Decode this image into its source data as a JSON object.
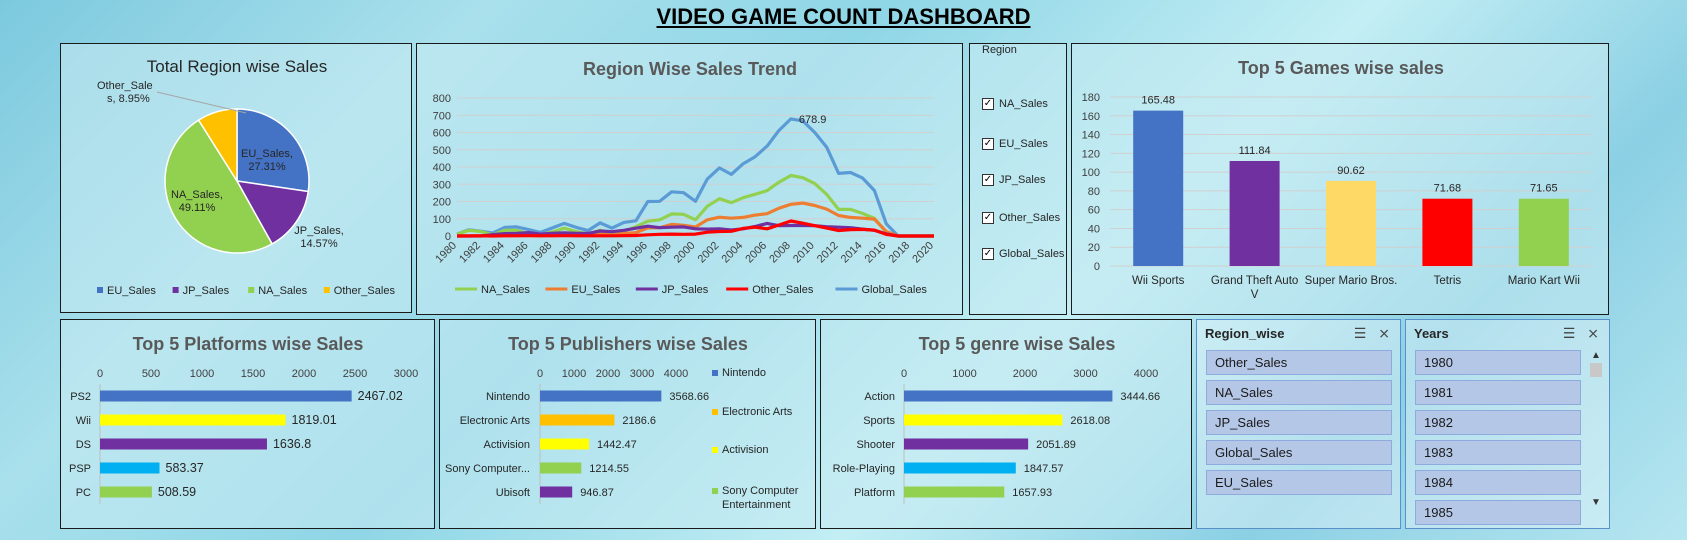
{
  "dashboard": {
    "title": "VIDEO GAME COUNT  DASHBOARD"
  },
  "colors": {
    "EU_Sales": "#4472c4",
    "JP_Sales": "#7030a0",
    "NA_Sales": "#92d050",
    "Other_Sales": "#ffc000",
    "Global_Sales": "#5b9bd5",
    "trend_NA": "#92d050",
    "trend_EU": "#ed7d31",
    "trend_JP": "#7030a0",
    "trend_Other": "#ff0000",
    "trend_Global": "#5b9bd5"
  },
  "region_filter": {
    "title": "Region",
    "items": [
      {
        "label": "NA_Sales",
        "checked": "✓"
      },
      {
        "label": "EU_Sales",
        "checked": "✓"
      },
      {
        "label": "JP_Sales",
        "checked": "✓"
      },
      {
        "label": "Other_Sales",
        "checked": "✓"
      },
      {
        "label": "Global_Sales",
        "checked": "✓"
      }
    ]
  },
  "slicer_region": {
    "title": "Region_wise",
    "items": [
      "Other_Sales",
      "NA_Sales",
      "JP_Sales",
      "Global_Sales",
      "EU_Sales"
    ]
  },
  "slicer_years": {
    "title": "Years",
    "items": [
      "1980",
      "1981",
      "1982",
      "1983",
      "1984",
      "1985"
    ]
  },
  "chart_data": [
    {
      "id": "pie",
      "type": "pie",
      "title": "Total  Region wise Sales",
      "slices": [
        {
          "name": "EU_Sales",
          "value": 27.31,
          "label": "EU_Sales,",
          "pct": "27.31%"
        },
        {
          "name": "JP_Sales",
          "value": 14.57,
          "label": "JP_Sales,",
          "pct": "14.57%"
        },
        {
          "name": "NA_Sales",
          "value": 49.11,
          "label": "NA_Sales,",
          "pct": "49.11%"
        },
        {
          "name": "Other_Sales",
          "value": 8.95,
          "label": "Other_Sale",
          "pct": "s, 8.95%"
        }
      ],
      "legend": [
        "EU_Sales",
        "JP_Sales",
        "NA_Sales",
        "Other_Sales"
      ],
      "legend_position": "bottom"
    },
    {
      "id": "trend",
      "type": "line",
      "title": "Region Wise Sales Trend",
      "x": [
        1980,
        1981,
        1982,
        1983,
        1984,
        1985,
        1986,
        1987,
        1988,
        1989,
        1990,
        1991,
        1992,
        1993,
        1994,
        1995,
        1996,
        1997,
        1998,
        1999,
        2000,
        2001,
        2002,
        2003,
        2004,
        2005,
        2006,
        2007,
        2008,
        2009,
        2010,
        2011,
        2012,
        2013,
        2014,
        2015,
        2016,
        2017,
        2020
      ],
      "x_ticks": [
        "1980",
        "1982",
        "1984",
        "1986",
        "1988",
        "1990",
        "1992",
        "1994",
        "1996",
        "1998",
        "2000",
        "2002",
        "2004",
        "2006",
        "2008",
        "2010",
        "2012",
        "2014",
        "2016",
        "2018",
        "2020"
      ],
      "ylim": [
        0,
        800
      ],
      "y_ticks": [
        "0",
        "100",
        "200",
        "300",
        "400",
        "500",
        "600",
        "700",
        "800"
      ],
      "annotation": {
        "x": 2008,
        "y": 678.9,
        "text": "678.9"
      },
      "series": [
        {
          "name": "NA_Sales",
          "values": [
            10,
            33,
            26,
            7,
            33,
            33,
            12,
            8,
            23,
            45,
            25,
            12,
            33,
            15,
            28,
            54,
            86,
            94,
            128,
            126,
            94,
            173,
            216,
            193,
            222,
            242,
            263,
            312,
            351,
            338,
            304,
            241,
            154,
            154,
            131,
            102,
            22,
            0,
            0
          ]
        },
        {
          "name": "EU_Sales",
          "values": [
            1,
            2,
            2,
            1,
            2,
            5,
            3,
            1,
            7,
            8,
            8,
            4,
            11,
            5,
            14,
            20,
            47,
            48,
            67,
            62,
            52,
            94,
            109,
            103,
            108,
            121,
            129,
            161,
            184,
            191,
            177,
            156,
            119,
            108,
            103,
            98,
            26,
            0,
            0
          ]
        },
        {
          "name": "JP_Sales",
          "values": [
            0,
            0,
            0,
            8,
            14,
            15,
            20,
            11,
            16,
            18,
            15,
            15,
            29,
            25,
            33,
            45,
            57,
            48,
            51,
            53,
            42,
            40,
            42,
            35,
            42,
            55,
            73,
            60,
            61,
            61,
            60,
            54,
            51,
            48,
            40,
            33,
            12,
            0,
            0
          ]
        },
        {
          "name": "Other_Sales",
          "values": [
            0,
            0,
            1,
            0,
            1,
            1,
            2,
            1,
            1,
            2,
            1,
            1,
            1,
            1,
            2,
            3,
            7,
            10,
            11,
            10,
            11,
            22,
            26,
            27,
            44,
            51,
            42,
            64,
            87,
            74,
            60,
            46,
            32,
            37,
            38,
            34,
            9,
            0,
            0
          ]
        },
        {
          "name": "Global_Sales",
          "values": [
            11,
            36,
            28,
            17,
            50,
            53,
            37,
            21,
            47,
            73,
            50,
            32,
            76,
            46,
            79,
            88,
            200,
            201,
            256,
            251,
            201,
            331,
            395,
            357,
            419,
            460,
            521,
            612,
            678.9,
            667,
            600,
            515,
            363,
            368,
            337,
            264,
            70,
            0,
            0
          ]
        }
      ],
      "legend_position": "bottom"
    },
    {
      "id": "games",
      "type": "bar",
      "title": "Top 5 Games wise sales",
      "categories": [
        "Wii Sports",
        "Grand Theft Auto V",
        "Super Mario Bros.",
        "Tetris",
        "Mario Kart Wii"
      ],
      "category_lines": [
        [
          "Wii Sports"
        ],
        [
          "Grand Theft Auto",
          "V"
        ],
        [
          "Super Mario Bros."
        ],
        [
          "Tetris"
        ],
        [
          "Mario Kart Wii"
        ]
      ],
      "values": [
        165.48,
        111.84,
        90.62,
        71.68,
        71.65
      ],
      "value_labels": [
        "165.48",
        "111.84",
        "90.62",
        "71.68",
        "71.65"
      ],
      "colors": [
        "#4472c4",
        "#7030a0",
        "#ffd966",
        "#ff0000",
        "#92d050"
      ],
      "ylim": [
        0,
        180
      ],
      "y_ticks": [
        "0",
        "20",
        "40",
        "60",
        "80",
        "100",
        "120",
        "140",
        "160",
        "180"
      ]
    },
    {
      "id": "platforms",
      "type": "bar",
      "orientation": "horizontal",
      "title": "Top 5 Platforms wise Sales",
      "categories": [
        "PS2",
        "Wii",
        "DS",
        "PSP",
        "PC"
      ],
      "values": [
        2467.02,
        1819.01,
        1636.8,
        583.37,
        508.59
      ],
      "value_labels": [
        "2467.02",
        "1819.01",
        "1636.8",
        "583.37",
        "508.59"
      ],
      "colors": [
        "#4472c4",
        "#ffff00",
        "#7030a0",
        "#00b0f0",
        "#92d050"
      ],
      "xlim": [
        0,
        3000
      ],
      "x_ticks": [
        "0",
        "500",
        "1000",
        "1500",
        "2000",
        "2500",
        "3000"
      ]
    },
    {
      "id": "publishers",
      "type": "bar",
      "orientation": "horizontal",
      "title": "Top 5 Publishers wise Sales",
      "categories": [
        "Nintendo",
        "Electronic Arts",
        "Activision",
        "Sony Computer...",
        "Ubisoft"
      ],
      "values": [
        3568.66,
        2186.6,
        1442.47,
        1214.55,
        946.87
      ],
      "value_labels": [
        "3568.66",
        "2186.6",
        "1442.47",
        "1214.55",
        "946.87"
      ],
      "colors": [
        "#4472c4",
        "#ffc000",
        "#ffff00",
        "#92d050",
        "#7030a0"
      ],
      "xlim": [
        0,
        4000
      ],
      "x_ticks": [
        "0",
        "1000",
        "2000",
        "3000",
        "4000"
      ],
      "legend": [
        {
          "lines": [
            "Nintendo"
          ],
          "color": "#4472c4"
        },
        {
          "lines": [
            "Electronic Arts"
          ],
          "color": "#ffc000"
        },
        {
          "lines": [
            "Activision"
          ],
          "color": "#ffff00"
        },
        {
          "lines": [
            "Sony Computer",
            "Entertainment"
          ],
          "color": "#92d050"
        }
      ],
      "legend_position": "right"
    },
    {
      "id": "genres",
      "type": "bar",
      "orientation": "horizontal",
      "title": "Top 5 genre wise Sales",
      "categories": [
        "Action",
        "Sports",
        "Shooter",
        "Role-Playing",
        "Platform"
      ],
      "values": [
        3444.66,
        2618.08,
        2051.89,
        1847.57,
        1657.93
      ],
      "value_labels": [
        "3444.66",
        "2618.08",
        "2051.89",
        "1847.57",
        "1657.93"
      ],
      "colors": [
        "#4472c4",
        "#ffff00",
        "#7030a0",
        "#00b0f0",
        "#92d050"
      ],
      "xlim": [
        0,
        4000
      ],
      "x_ticks": [
        "0",
        "1000",
        "2000",
        "3000",
        "4000"
      ]
    }
  ]
}
